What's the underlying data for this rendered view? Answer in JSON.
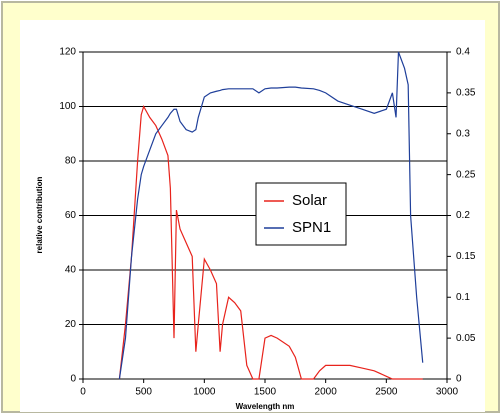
{
  "chart_data": {
    "type": "line",
    "x_label": "Wavelength nm",
    "y_label": "relative contribution",
    "x": [
      300,
      350,
      400,
      450,
      480,
      500,
      550,
      600,
      650,
      700,
      720,
      750,
      770,
      800,
      850,
      900,
      930,
      950,
      1000,
      1050,
      1100,
      1130,
      1150,
      1200,
      1250,
      1300,
      1350,
      1400,
      1450,
      1500,
      1550,
      1600,
      1700,
      1750,
      1800,
      1900,
      1950,
      2000,
      2100,
      2200,
      2300,
      2400,
      2500,
      2550,
      2580,
      2600,
      2650,
      2680,
      2700,
      2750,
      2800
    ],
    "series": [
      {
        "name": "Solar",
        "color": "#e8231c",
        "axis": "y",
        "values": [
          0,
          20,
          45,
          80,
          97,
          100,
          96,
          93,
          88,
          82,
          70,
          15,
          62,
          55,
          50,
          45,
          10,
          20,
          44,
          40,
          35,
          10,
          20,
          30,
          28,
          25,
          5,
          0,
          0,
          15,
          16,
          15,
          12,
          8,
          0,
          0,
          3,
          5,
          5,
          5,
          4,
          3,
          1,
          0,
          0,
          0,
          0,
          0,
          0,
          0,
          0
        ]
      },
      {
        "name": "SPN1",
        "color": "#1f3f9a",
        "axis": "y2",
        "values": [
          0,
          0.05,
          0.15,
          0.22,
          0.25,
          0.26,
          0.28,
          0.3,
          0.31,
          0.32,
          0.325,
          0.33,
          0.33,
          0.315,
          0.305,
          0.302,
          0.305,
          0.32,
          0.345,
          0.35,
          0.352,
          0.353,
          0.354,
          0.355,
          0.355,
          0.355,
          0.355,
          0.355,
          0.35,
          0.355,
          0.356,
          0.356,
          0.357,
          0.357,
          0.356,
          0.355,
          0.353,
          0.35,
          0.34,
          0.335,
          0.33,
          0.325,
          0.33,
          0.35,
          0.32,
          0.4,
          0.38,
          0.36,
          0.2,
          0.1,
          0.02
        ]
      }
    ],
    "xlim": [
      0,
      3000
    ],
    "xticks": [
      0,
      500,
      1000,
      1500,
      2000,
      2500,
      3000
    ],
    "ylim": [
      0,
      120
    ],
    "yticks": [
      0,
      20,
      40,
      60,
      80,
      100,
      120
    ],
    "y2lim": [
      0,
      0.4
    ],
    "y2ticks": [
      0,
      0.05,
      0.1,
      0.15,
      0.2,
      0.25,
      0.3,
      0.35,
      0.4
    ],
    "grid": true,
    "legend": "center"
  }
}
